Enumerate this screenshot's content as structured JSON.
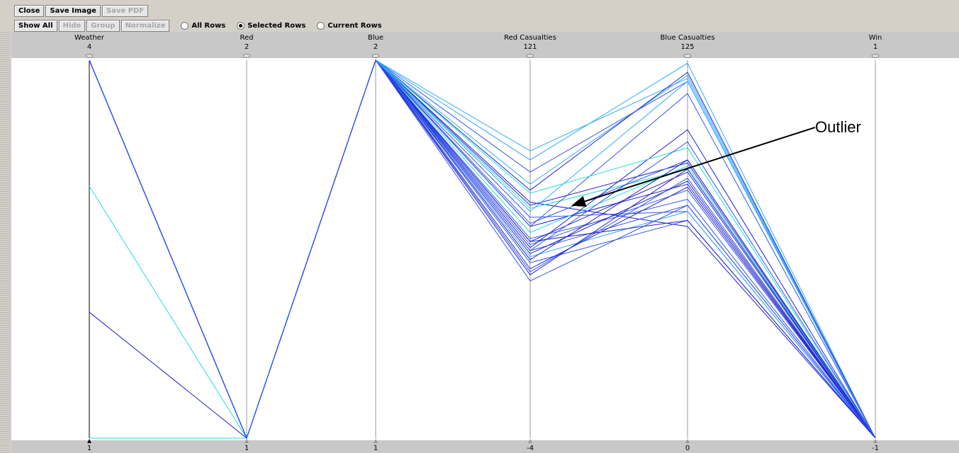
{
  "toolbar": {
    "row1": [
      {
        "label": "Close",
        "enabled": true
      },
      {
        "label": "Save Image",
        "enabled": true
      },
      {
        "label": "Save PDF",
        "enabled": false
      }
    ],
    "row2": [
      {
        "label": "Show All",
        "enabled": true
      },
      {
        "label": "Hide",
        "enabled": false
      },
      {
        "label": "Group",
        "enabled": false
      },
      {
        "label": "Normalize",
        "enabled": false
      }
    ],
    "radios": [
      "All Rows",
      "Selected Rows",
      "Current Rows"
    ],
    "selected_radio": 1
  },
  "chart_data": {
    "type": "parallel",
    "axes": [
      {
        "name": "Weather",
        "range": [
          1,
          4
        ]
      },
      {
        "name": "Red",
        "range": [
          1,
          2
        ]
      },
      {
        "name": "Blue",
        "range": [
          1,
          2
        ]
      },
      {
        "name": "Red Casualties",
        "range": [
          -4,
          121
        ]
      },
      {
        "name": "Blue Casualties",
        "range": [
          0,
          125
        ]
      },
      {
        "name": "Win",
        "range": [
          -1,
          1
        ]
      }
    ],
    "rows": [
      {
        "color": "#33aaff",
        "values": [
          4,
          1,
          2,
          91,
          119,
          -1
        ]
      },
      {
        "color": "#33aaff",
        "values": [
          4,
          1,
          2,
          88,
          124,
          -1
        ]
      },
      {
        "color": "#3355ee",
        "values": [
          4,
          1,
          2,
          84,
          118,
          -1
        ]
      },
      {
        "color": "#33aaff",
        "values": [
          4,
          1,
          2,
          80,
          120,
          -1
        ]
      },
      {
        "color": "#2222cc",
        "values": [
          4,
          1,
          2,
          78,
          121,
          -1
        ]
      },
      {
        "color": "#2222cc",
        "values": [
          2,
          1,
          2,
          73,
          91,
          -1
        ]
      },
      {
        "color": "#2222cc",
        "values": [
          4,
          1,
          2,
          74,
          70,
          -1
        ]
      },
      {
        "color": "#22dddd",
        "values": [
          3,
          1,
          2,
          72,
          89,
          -1
        ]
      },
      {
        "color": "#3355ee",
        "values": [
          4,
          1,
          2,
          69,
          75,
          -1
        ]
      },
      {
        "color": "#3355ee",
        "values": [
          4,
          1,
          2,
          67,
          92,
          -1
        ]
      },
      {
        "color": "#2222cc",
        "values": [
          4,
          1,
          2,
          66,
          84,
          -1
        ]
      },
      {
        "color": "#22dddd",
        "values": [
          1,
          1,
          2,
          64,
          90,
          -1
        ]
      },
      {
        "color": "#3355ee",
        "values": [
          4,
          1,
          2,
          62,
          79,
          -1
        ]
      },
      {
        "color": "#2222cc",
        "values": [
          4,
          1,
          2,
          61,
          88,
          -1
        ]
      },
      {
        "color": "#3355ee",
        "values": [
          4,
          1,
          2,
          60,
          82,
          -1
        ]
      },
      {
        "color": "#2222cc",
        "values": [
          4,
          1,
          2,
          59,
          102,
          -1
        ]
      },
      {
        "color": "#3355ee",
        "values": [
          4,
          1,
          2,
          58,
          77,
          -1
        ]
      },
      {
        "color": "#2222cc",
        "values": [
          4,
          1,
          2,
          57,
          85,
          -1
        ]
      },
      {
        "color": "#33aaff",
        "values": [
          4,
          1,
          2,
          56,
          75,
          -1
        ]
      },
      {
        "color": "#2222cc",
        "values": [
          4,
          1,
          2,
          55,
          92,
          -1
        ]
      },
      {
        "color": "#3355ee",
        "values": [
          4,
          1,
          2,
          54,
          72,
          -1
        ]
      },
      {
        "color": "#2222cc",
        "values": [
          4,
          1,
          2,
          52,
          83,
          -1
        ]
      },
      {
        "color": "#3355ee",
        "values": [
          4,
          1,
          2,
          51,
          86,
          -1
        ]
      },
      {
        "color": "#2222cc",
        "values": [
          4,
          1,
          2,
          50,
          89,
          -1
        ]
      },
      {
        "color": "#3355ee",
        "values": [
          4,
          1,
          2,
          48,
          77,
          -1
        ]
      },
      {
        "color": "#33aaff",
        "values": [
          4,
          1,
          2,
          71,
          118,
          -1
        ]
      },
      {
        "color": "#3355ee",
        "values": [
          4,
          1,
          2,
          66,
          114,
          -1
        ]
      },
      {
        "color": "#22dddd",
        "values": [
          4,
          1,
          2,
          77,
          96,
          -1
        ]
      },
      {
        "color": "#2222cc",
        "values": [
          4,
          1,
          2,
          61,
          72,
          -1
        ]
      },
      {
        "color": "#3355ee",
        "values": [
          4,
          1,
          2,
          58,
          98,
          -1
        ]
      }
    ],
    "annotation": "Outlier"
  }
}
